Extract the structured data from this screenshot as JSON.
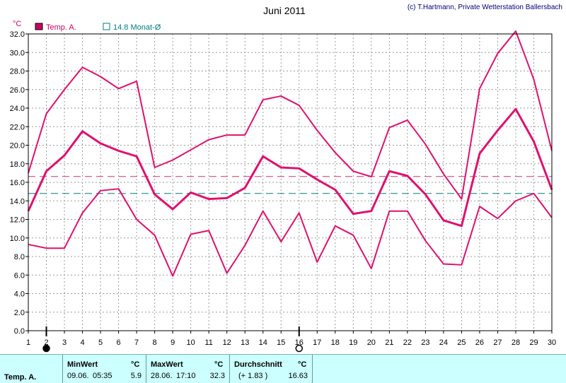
{
  "header": {
    "title": "Juni 2011",
    "credit": "(c) T.Hartmann, Private Wetterstation Ballersbach"
  },
  "legend": {
    "series_label": "Temp. A.",
    "avg_label": "14.8 Monat-Ø"
  },
  "chart_data": {
    "type": "line",
    "ylabel": "°C",
    "ylim": [
      0,
      32
    ],
    "yticks": [
      "0.0",
      "2.0",
      "4.0",
      "6.0",
      "8.0",
      "10.0",
      "12.0",
      "14.0",
      "16.0",
      "18.0",
      "20.0",
      "22.0",
      "24.0",
      "26.0",
      "28.0",
      "30.0",
      "32.0"
    ],
    "x": [
      1,
      2,
      3,
      4,
      5,
      6,
      7,
      8,
      9,
      10,
      11,
      12,
      13,
      14,
      15,
      16,
      17,
      18,
      19,
      20,
      21,
      22,
      23,
      24,
      25,
      26,
      27,
      28,
      29,
      30
    ],
    "grid": true,
    "series": [
      {
        "role": "max",
        "values": [
          17.0,
          23.4,
          26.0,
          28.4,
          27.4,
          26.1,
          26.9,
          17.6,
          18.4,
          19.5,
          20.6,
          21.1,
          21.1,
          24.9,
          25.3,
          24.3,
          21.6,
          19.2,
          17.2,
          16.6,
          21.9,
          22.7,
          20.1,
          16.9,
          14.2,
          26.1,
          29.9,
          32.3,
          27.1,
          19.4
        ],
        "color": "#e0106e",
        "width": 2
      },
      {
        "role": "mean",
        "values": [
          12.9,
          17.2,
          18.9,
          21.5,
          20.2,
          19.4,
          18.8,
          14.7,
          13.1,
          14.9,
          14.2,
          14.3,
          15.4,
          18.8,
          17.6,
          17.5,
          16.3,
          15.2,
          12.6,
          12.9,
          17.2,
          16.7,
          14.7,
          11.9,
          11.3,
          19.1,
          21.6,
          23.9,
          20.4,
          15.2
        ],
        "color": "#e0106e",
        "width": 3
      },
      {
        "role": "min",
        "values": [
          9.3,
          8.9,
          8.9,
          12.7,
          15.1,
          15.3,
          12.0,
          10.3,
          5.9,
          10.4,
          10.8,
          6.2,
          9.2,
          12.9,
          9.6,
          12.7,
          7.4,
          11.3,
          10.3,
          6.7,
          12.9,
          12.9,
          9.7,
          7.2,
          7.1,
          13.4,
          12.1,
          14.0,
          14.8,
          12.2
        ],
        "color": "#e0106e",
        "width": 2
      }
    ],
    "reference_lines": [
      {
        "label": "Monat-Ø",
        "value": 14.8,
        "color": "#007f7f",
        "style": "dashed"
      },
      {
        "label": "Durchschnitt",
        "value": 16.63,
        "color": "#cc3366",
        "style": "dashed"
      }
    ],
    "markers": [
      {
        "day": 2,
        "symbol": "filled-circle"
      },
      {
        "day": 16,
        "symbol": "open-circle"
      }
    ]
  },
  "stats": {
    "row_label": "Temp. A.",
    "min_header": "MinWert",
    "min_unit": "°C",
    "min_date": "09.06.",
    "min_time": "05:35",
    "min_value": "5.9",
    "max_header": "MaxWert",
    "max_unit": "°C",
    "max_date": "28.06.",
    "max_time": "17:10",
    "max_value": "32.3",
    "avg_header": "Durchschnitt",
    "avg_unit": "°C",
    "avg_delta": "(+ 1.83 )",
    "avg_value": "16.63"
  },
  "colors": {
    "series": "#e0106e",
    "avg_line": "#007f7f",
    "stats_bg": "#ccffff"
  }
}
